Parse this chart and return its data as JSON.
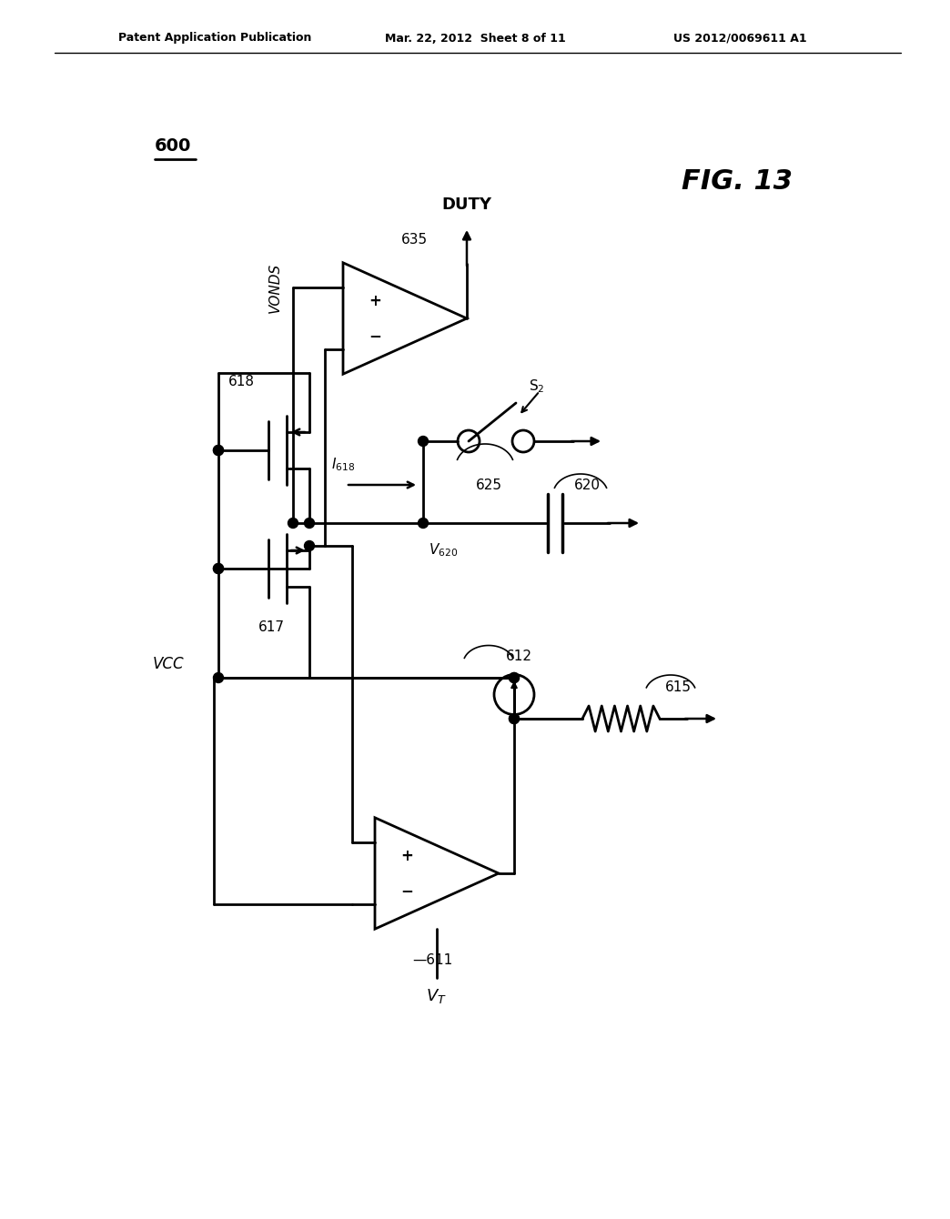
{
  "header_left": "Patent Application Publication",
  "header_mid": "Mar. 22, 2012  Sheet 8 of 11",
  "header_right": "US 2012/0069611 A1",
  "fig_label": "FIG. 13",
  "circuit_label": "600",
  "bg_color": "#ffffff",
  "line_color": "#000000"
}
